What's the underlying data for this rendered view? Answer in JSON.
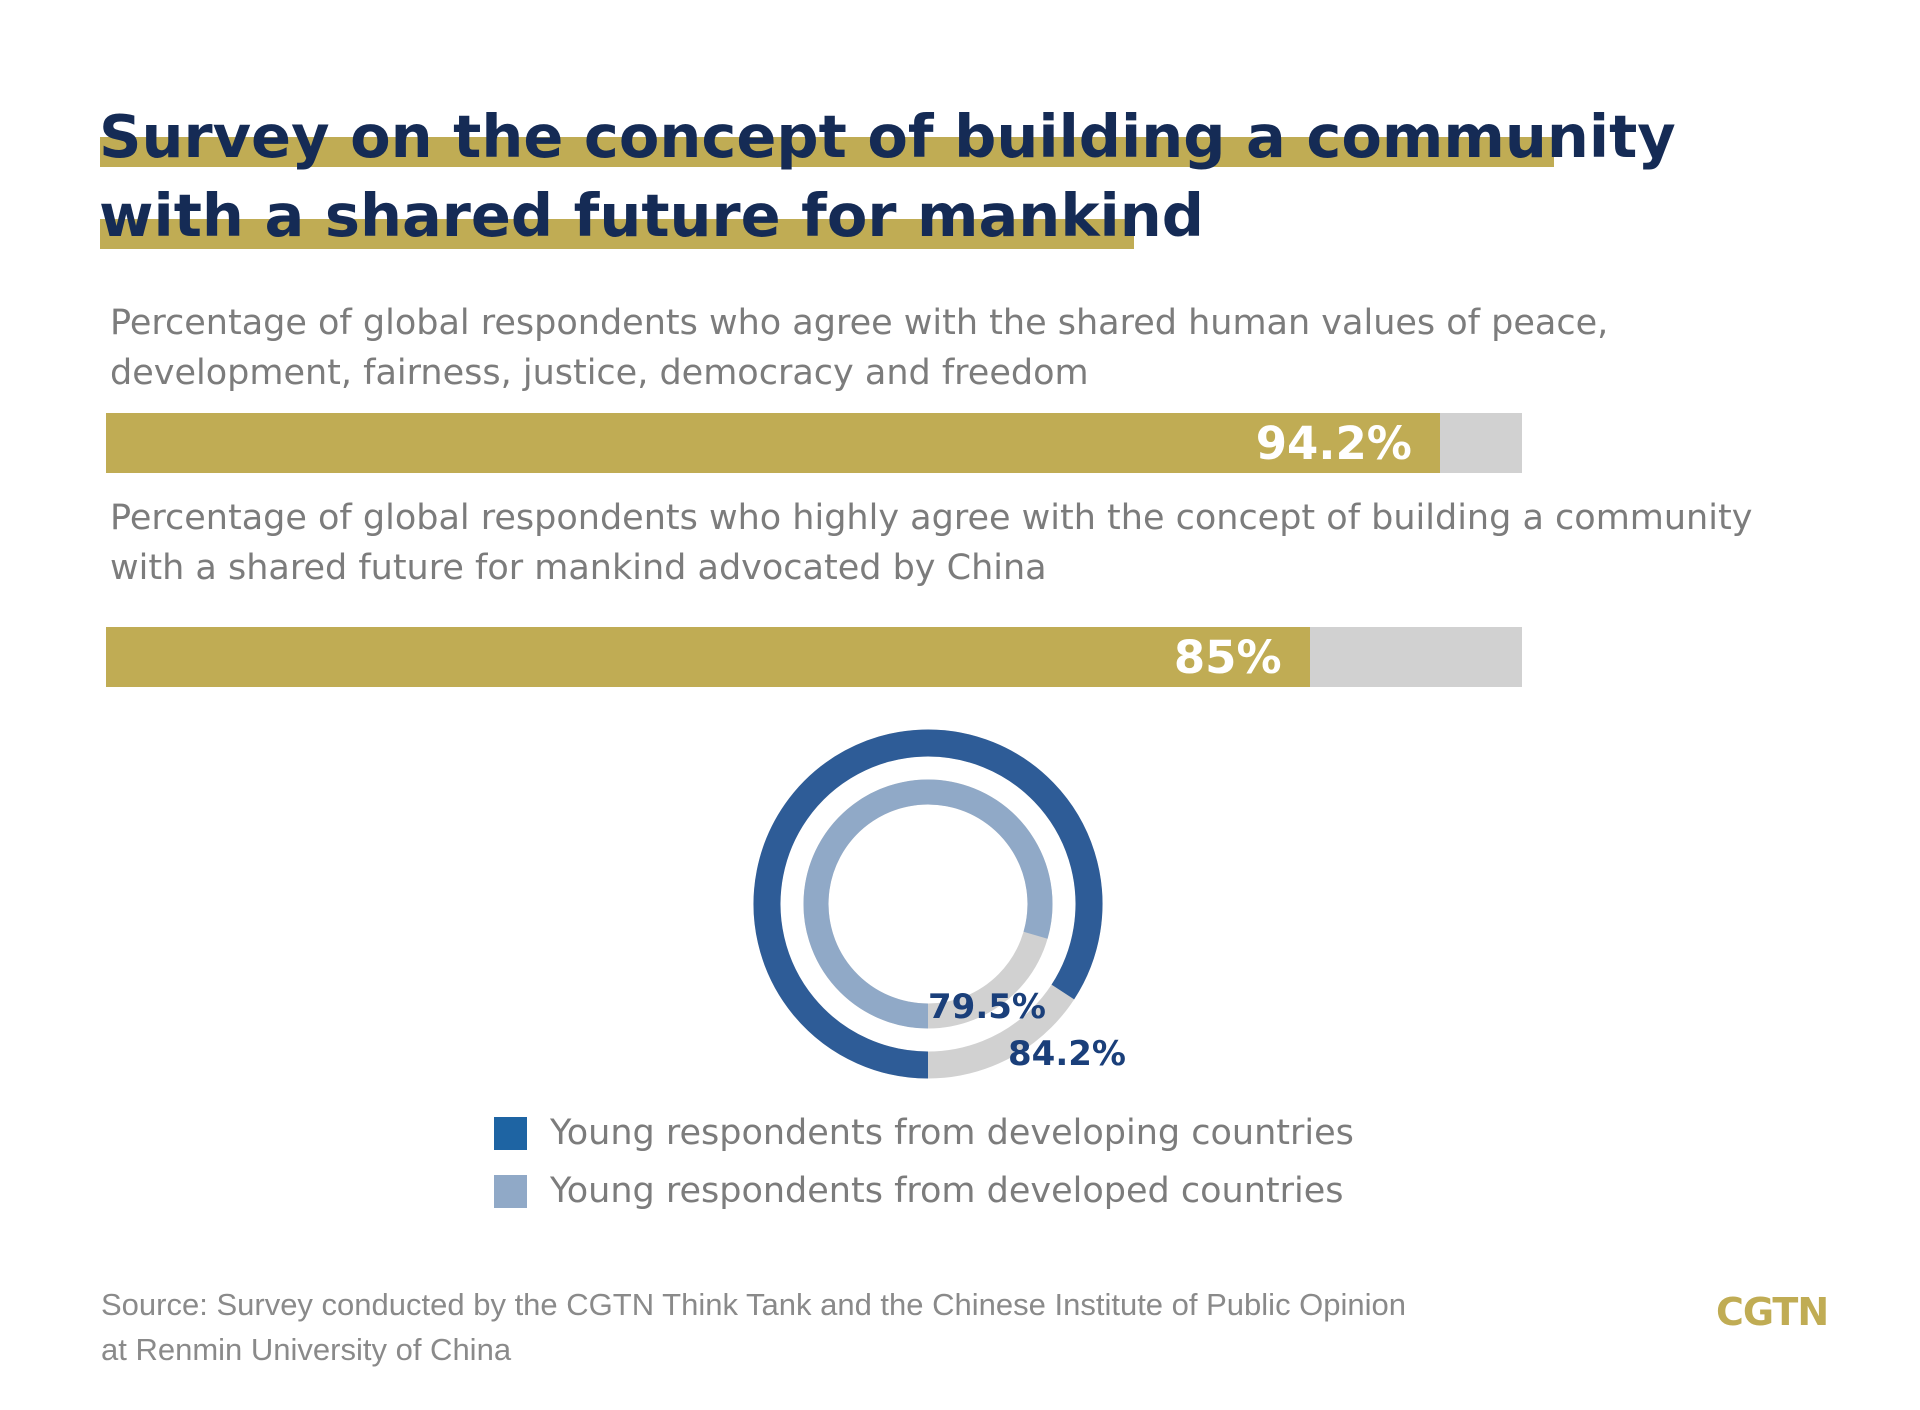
{
  "title": {
    "line1": "Survey on the concept of building a community",
    "line2": "with a shared future for mankind"
  },
  "colors": {
    "gold": "#c0ac54",
    "navy": "#152b55",
    "track": "#d1d1d1",
    "developing": "#2e5c97",
    "developed": "#90a9c7",
    "legend_developing": "#1e64a3",
    "label_blue": "#1a3f7a"
  },
  "chart_data": [
    {
      "type": "bar",
      "description": "Percentage of global respondents who agree with the shared human values of peace, development, fairness, justice, democracy and freedom",
      "value": 94.2,
      "label": "94.2%",
      "ylim": [
        0,
        100
      ]
    },
    {
      "type": "bar",
      "description": "Percentage of global respondents who highly agree with the concept of building a community with a shared future for mankind advocated by China",
      "value": 85,
      "label": "85%",
      "ylim": [
        0,
        100
      ]
    },
    {
      "type": "pie",
      "style": "concentric donut",
      "series": [
        {
          "name": "Young respondents from developing countries",
          "value": 84.2,
          "label": "84.2%",
          "ring": "outer"
        },
        {
          "name": "Young respondents from developed countries",
          "value": 79.5,
          "label": "79.5%",
          "ring": "inner"
        }
      ],
      "legend": "bottom"
    }
  ],
  "source": {
    "line1": "Source: Survey conducted by the CGTN Think Tank and the Chinese Institute of Public Opinion",
    "line2": "at Renmin University of China"
  },
  "logo": "CGTN"
}
